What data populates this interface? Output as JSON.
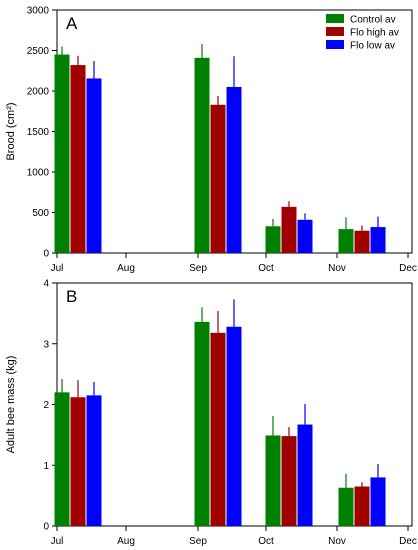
{
  "chart_data": [
    {
      "type": "bar",
      "panel_label": "A",
      "ylabel": "Brood (cm²)",
      "ylim": [
        0,
        3000
      ],
      "yticks": [
        0,
        500,
        1000,
        1500,
        2000,
        2500,
        3000
      ],
      "xticks": [
        "Jul",
        "Aug",
        "Sep",
        "Oct",
        "Nov",
        "Dec"
      ],
      "groups": [
        "Jul",
        "Sep",
        "Oct",
        "Nov"
      ],
      "legend_position": "top-right",
      "series": [
        {
          "name": "Control av",
          "color": "#008000",
          "values": [
            2450,
            2410,
            330,
            295
          ],
          "errors": [
            100,
            170,
            90,
            145
          ]
        },
        {
          "name": "Flo high av",
          "color": "#a00000",
          "values": [
            2320,
            1830,
            570,
            275
          ],
          "errors": [
            115,
            110,
            70,
            65
          ]
        },
        {
          "name": "Flo low av",
          "color": "#0000ff",
          "values": [
            2155,
            2050,
            410,
            320
          ],
          "errors": [
            215,
            380,
            80,
            130
          ]
        }
      ]
    },
    {
      "type": "bar",
      "panel_label": "B",
      "ylabel": "Adult bee mass (kg)",
      "ylim": [
        0,
        4
      ],
      "yticks": [
        0,
        1,
        2,
        3,
        4
      ],
      "xticks": [
        "Jul",
        "Aug",
        "Sep",
        "Oct",
        "Nov",
        "Dec"
      ],
      "groups": [
        "Jul",
        "Sep",
        "Oct",
        "Nov"
      ],
      "series": [
        {
          "name": "Control av",
          "color": "#008000",
          "values": [
            2.2,
            3.36,
            1.49,
            0.63
          ],
          "errors": [
            0.22,
            0.24,
            0.32,
            0.23
          ]
        },
        {
          "name": "Flo high av",
          "color": "#a00000",
          "values": [
            2.12,
            3.18,
            1.48,
            0.65
          ],
          "errors": [
            0.28,
            0.36,
            0.15,
            0.07
          ]
        },
        {
          "name": "Flo low av",
          "color": "#0000ff",
          "values": [
            2.15,
            3.28,
            1.67,
            0.8
          ],
          "errors": [
            0.22,
            0.45,
            0.34,
            0.22
          ]
        }
      ]
    }
  ]
}
